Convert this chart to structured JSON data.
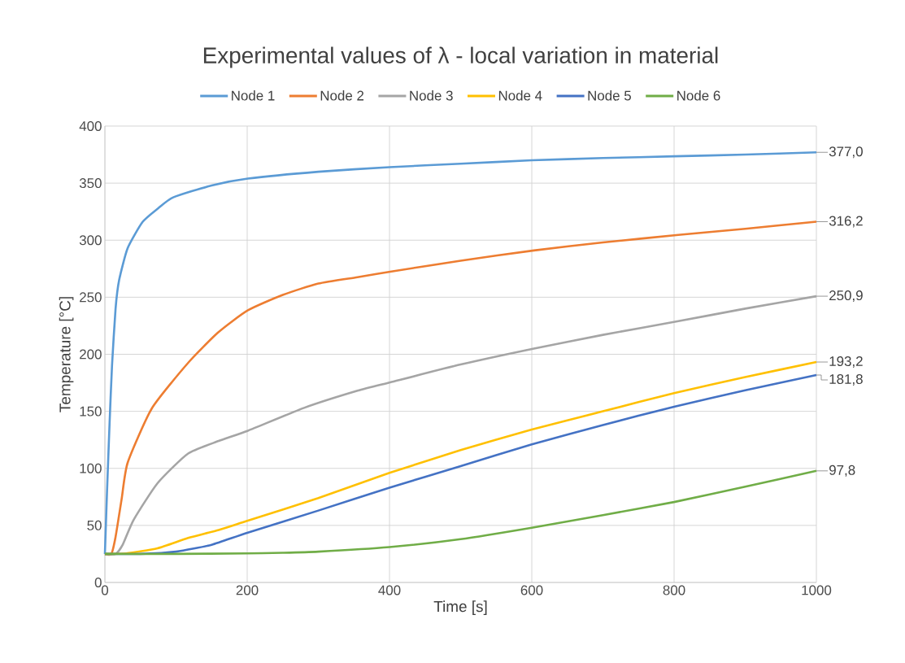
{
  "chart_data": {
    "type": "line",
    "title": "Experimental values of λ - local variation in material",
    "xlabel": "Time [s]",
    "ylabel": "Temperature [°C]",
    "xlim": [
      0,
      1000
    ],
    "xticks": [
      0,
      200,
      400,
      600,
      800,
      1000
    ],
    "ylim": [
      0,
      400
    ],
    "yticks": [
      0,
      50,
      100,
      150,
      200,
      250,
      300,
      350,
      400
    ],
    "grid": true,
    "legend": "top",
    "marker": "none",
    "line_style": "solid",
    "series": [
      {
        "name": "Node 1",
        "color": "#5b9bd5",
        "x": [
          0,
          3,
          6.6,
          10,
          15,
          20,
          32,
          53,
          75,
          96,
          150,
          201,
          300,
          400,
          500,
          600,
          700,
          800,
          900,
          1000
        ],
        "values": [
          25,
          80,
          140,
          190,
          240,
          265,
          293,
          316,
          328,
          337.5,
          348,
          354,
          360,
          364,
          367,
          370,
          372,
          373.5,
          375,
          377.0
        ],
        "value_labels": [
          null,
          null,
          null,
          null,
          null,
          null,
          null,
          null,
          null,
          null,
          null,
          null,
          null,
          null,
          null,
          null,
          null,
          null,
          null,
          "377,0"
        ]
      },
      {
        "name": "Node 2",
        "color": "#ed7d31",
        "x": [
          0,
          9,
          15,
          23.5,
          32,
          66,
          117,
          159,
          201,
          250,
          300,
          355,
          401,
          500,
          603,
          700,
          806,
          900,
          1000
        ],
        "values": [
          25,
          25,
          40,
          73,
          105,
          152.6,
          192.5,
          219,
          238.5,
          252,
          262,
          267.6,
          272.4,
          282,
          291,
          298,
          304.6,
          310,
          316.2
        ],
        "value_labels": [
          null,
          null,
          null,
          null,
          null,
          null,
          null,
          null,
          null,
          null,
          null,
          null,
          null,
          null,
          null,
          null,
          null,
          null,
          "316,2"
        ]
      },
      {
        "name": "Node 3",
        "color": "#a5a5a5",
        "x": [
          0,
          15,
          25,
          40.5,
          74,
          117,
          160,
          201,
          280,
          355,
          401,
          500,
          603,
          700,
          806,
          900,
          1000
        ],
        "values": [
          25,
          25,
          33,
          55,
          87,
          113,
          124,
          133,
          153,
          168,
          175.4,
          191,
          205,
          217,
          229,
          240,
          250.9
        ],
        "value_labels": [
          null,
          null,
          null,
          null,
          null,
          null,
          null,
          null,
          null,
          null,
          null,
          null,
          null,
          null,
          null,
          null,
          "250,9"
        ]
      },
      {
        "name": "Node 4",
        "color": "#ffc000",
        "x": [
          0,
          30,
          74,
          117,
          160,
          200,
          300,
          400,
          500,
          600,
          700,
          800,
          900,
          1000
        ],
        "values": [
          25,
          25.5,
          30,
          39,
          46,
          54,
          74,
          96,
          116,
          134,
          150,
          166,
          180,
          193.2
        ],
        "value_labels": [
          null,
          null,
          null,
          null,
          null,
          null,
          null,
          null,
          null,
          null,
          null,
          null,
          null,
          "193,2"
        ]
      },
      {
        "name": "Node 5",
        "color": "#4472c4",
        "x": [
          0,
          50,
          100,
          150,
          200,
          300,
          400,
          500,
          600,
          700,
          800,
          900,
          1000
        ],
        "values": [
          25,
          25,
          27,
          33,
          43.5,
          63,
          83,
          102,
          121,
          138,
          154,
          168.5,
          181.8
        ],
        "value_labels": [
          null,
          null,
          null,
          null,
          null,
          null,
          null,
          null,
          null,
          null,
          null,
          null,
          "181,8"
        ]
      },
      {
        "name": "Node 6",
        "color": "#70ad47",
        "x": [
          0,
          100,
          200,
          250,
          300,
          400,
          500,
          600,
          700,
          800,
          900,
          1000
        ],
        "values": [
          25,
          25,
          25.5,
          26,
          27,
          31,
          38,
          48,
          59,
          70.5,
          84,
          97.8
        ],
        "value_labels": [
          null,
          null,
          null,
          null,
          null,
          null,
          null,
          null,
          null,
          null,
          null,
          "97,8"
        ]
      }
    ]
  }
}
